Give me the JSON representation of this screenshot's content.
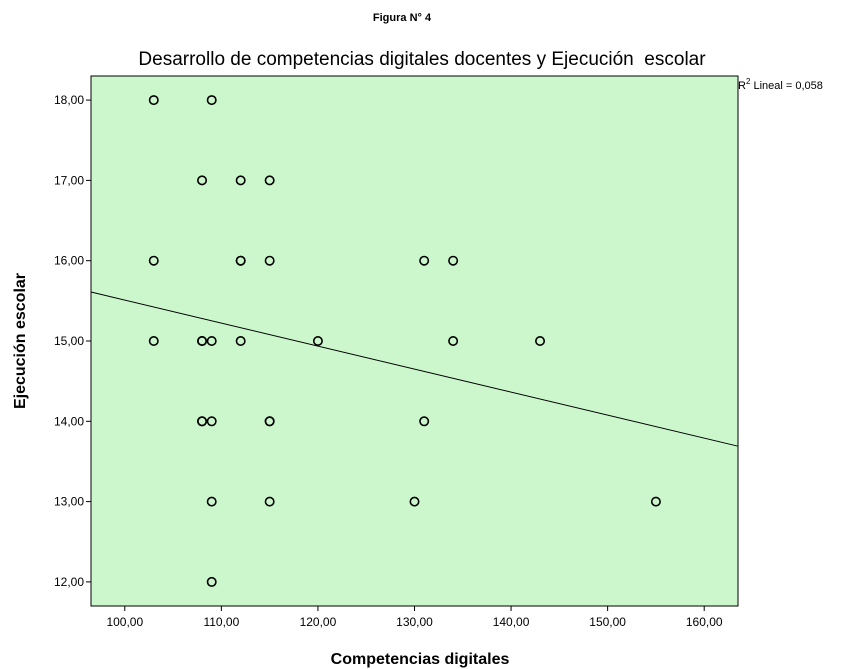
{
  "figure_caption": "Figura N° 4",
  "colors": {
    "plot_background": "#ccf7cc",
    "marker_stroke": "#000000",
    "fit_line": "#000000"
  },
  "chart_data": {
    "type": "scatter",
    "title": "Desarrollo de competencias digitales docentes y Ejecución  escolar",
    "xlabel": "Competencias digitales",
    "ylabel": "Ejecución escolar",
    "xlim": [
      96.5,
      163.5
    ],
    "ylim": [
      11.7,
      18.3
    ],
    "x_ticks": [
      100,
      110,
      120,
      130,
      140,
      150,
      160
    ],
    "x_tick_labels": [
      "100,00",
      "110,00",
      "120,00",
      "130,00",
      "140,00",
      "150,00",
      "160,00"
    ],
    "y_ticks": [
      12,
      13,
      14,
      15,
      16,
      17,
      18
    ],
    "y_tick_labels": [
      "12,00",
      "13,00",
      "14,00",
      "15,00",
      "16,00",
      "17,00",
      "18,00"
    ],
    "grid": false,
    "marker": "open-circle",
    "points": [
      {
        "x": 103,
        "y": 18
      },
      {
        "x": 109,
        "y": 18
      },
      {
        "x": 108,
        "y": 17
      },
      {
        "x": 112,
        "y": 17
      },
      {
        "x": 115,
        "y": 17
      },
      {
        "x": 103,
        "y": 16
      },
      {
        "x": 112,
        "y": 16
      },
      {
        "x": 112,
        "y": 16
      },
      {
        "x": 115,
        "y": 16
      },
      {
        "x": 131,
        "y": 16
      },
      {
        "x": 134,
        "y": 16
      },
      {
        "x": 103,
        "y": 15
      },
      {
        "x": 108,
        "y": 15
      },
      {
        "x": 108,
        "y": 15
      },
      {
        "x": 109,
        "y": 15
      },
      {
        "x": 112,
        "y": 15
      },
      {
        "x": 120,
        "y": 15
      },
      {
        "x": 134,
        "y": 15
      },
      {
        "x": 143,
        "y": 15
      },
      {
        "x": 108,
        "y": 14
      },
      {
        "x": 108,
        "y": 14
      },
      {
        "x": 109,
        "y": 14
      },
      {
        "x": 115,
        "y": 14
      },
      {
        "x": 115,
        "y": 14
      },
      {
        "x": 131,
        "y": 14
      },
      {
        "x": 109,
        "y": 13
      },
      {
        "x": 115,
        "y": 13
      },
      {
        "x": 130,
        "y": 13
      },
      {
        "x": 155,
        "y": 13
      },
      {
        "x": 109,
        "y": 12
      }
    ],
    "fit_line": {
      "type": "linear",
      "from": {
        "x": 96.5,
        "y": 15.61
      },
      "to": {
        "x": 163.5,
        "y": 13.69
      }
    },
    "annotation": {
      "prefix": "R",
      "superscript": "2",
      "text": " Lineal = 0,058"
    }
  }
}
